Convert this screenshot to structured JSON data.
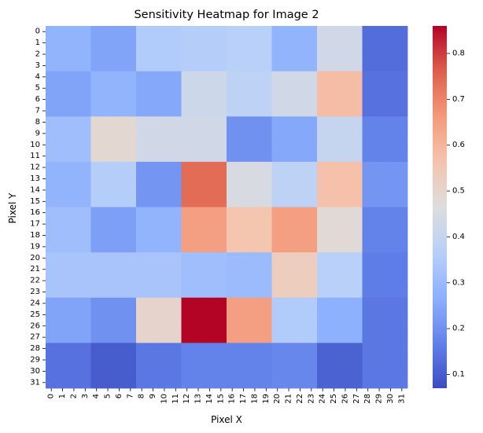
{
  "chart_data": {
    "type": "heatmap",
    "title": "Sensitivity Heatmap for Image 2",
    "xlabel": "Pixel X",
    "ylabel": "Pixel Y",
    "x_ticks": [
      "0",
      "1",
      "2",
      "3",
      "4",
      "5",
      "6",
      "7",
      "8",
      "9",
      "10",
      "11",
      "12",
      "13",
      "14",
      "15",
      "16",
      "17",
      "18",
      "19",
      "20",
      "21",
      "22",
      "23",
      "24",
      "25",
      "26",
      "27",
      "28",
      "29",
      "30",
      "31"
    ],
    "y_ticks": [
      "0",
      "1",
      "2",
      "3",
      "4",
      "5",
      "6",
      "7",
      "8",
      "9",
      "10",
      "11",
      "12",
      "13",
      "14",
      "15",
      "16",
      "17",
      "18",
      "19",
      "20",
      "21",
      "22",
      "23",
      "24",
      "25",
      "26",
      "27",
      "28",
      "29",
      "30",
      "31"
    ],
    "block_size": 4,
    "colormap": "coolwarm",
    "vmin": 0.07,
    "vmax": 0.86,
    "colorbar_ticks": [
      "0.1",
      "0.2",
      "0.3",
      "0.4",
      "0.5",
      "0.6",
      "0.7",
      "0.8"
    ],
    "block_values": [
      [
        0.28,
        0.24,
        0.35,
        0.36,
        0.37,
        0.28,
        0.43,
        0.13
      ],
      [
        0.24,
        0.28,
        0.25,
        0.42,
        0.38,
        0.43,
        0.58,
        0.14
      ],
      [
        0.31,
        0.49,
        0.43,
        0.43,
        0.2,
        0.25,
        0.4,
        0.17
      ],
      [
        0.28,
        0.36,
        0.21,
        0.74,
        0.45,
        0.38,
        0.57,
        0.21
      ],
      [
        0.31,
        0.23,
        0.28,
        0.65,
        0.56,
        0.65,
        0.48,
        0.17
      ],
      [
        0.33,
        0.33,
        0.33,
        0.31,
        0.3,
        0.53,
        0.37,
        0.16
      ],
      [
        0.24,
        0.2,
        0.5,
        0.86,
        0.65,
        0.35,
        0.27,
        0.15
      ],
      [
        0.14,
        0.1,
        0.15,
        0.17,
        0.17,
        0.18,
        0.11,
        0.15
      ]
    ]
  }
}
